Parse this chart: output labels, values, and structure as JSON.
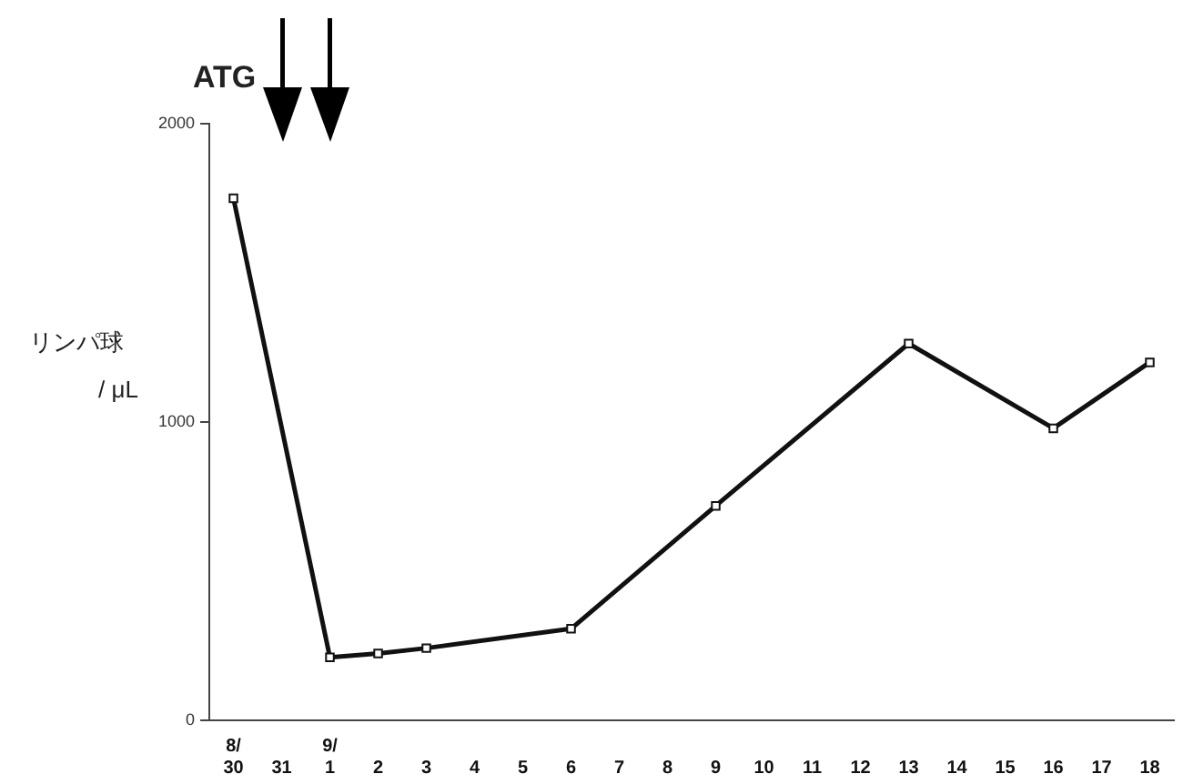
{
  "chart_data": {
    "type": "line",
    "ylabel": "リンパ球\n/ μL",
    "annotations": [
      "ATG"
    ],
    "categories": [
      "8/30",
      "31",
      "9/1",
      "2",
      "3",
      "4",
      "5",
      "6",
      "7",
      "8",
      "9",
      "10",
      "11",
      "12",
      "13",
      "14",
      "15",
      "16",
      "17",
      "18"
    ],
    "values": [
      1750,
      null,
      211,
      224,
      242,
      null,
      null,
      307,
      null,
      null,
      719,
      null,
      null,
      null,
      1263,
      null,
      null,
      979,
      null,
      1200
    ],
    "color": "#111111",
    "ylim": [
      0,
      2000
    ],
    "yticks": [
      0,
      1000,
      2000
    ],
    "grid": false,
    "legend": false,
    "marker": "square",
    "line_style": "solid"
  }
}
